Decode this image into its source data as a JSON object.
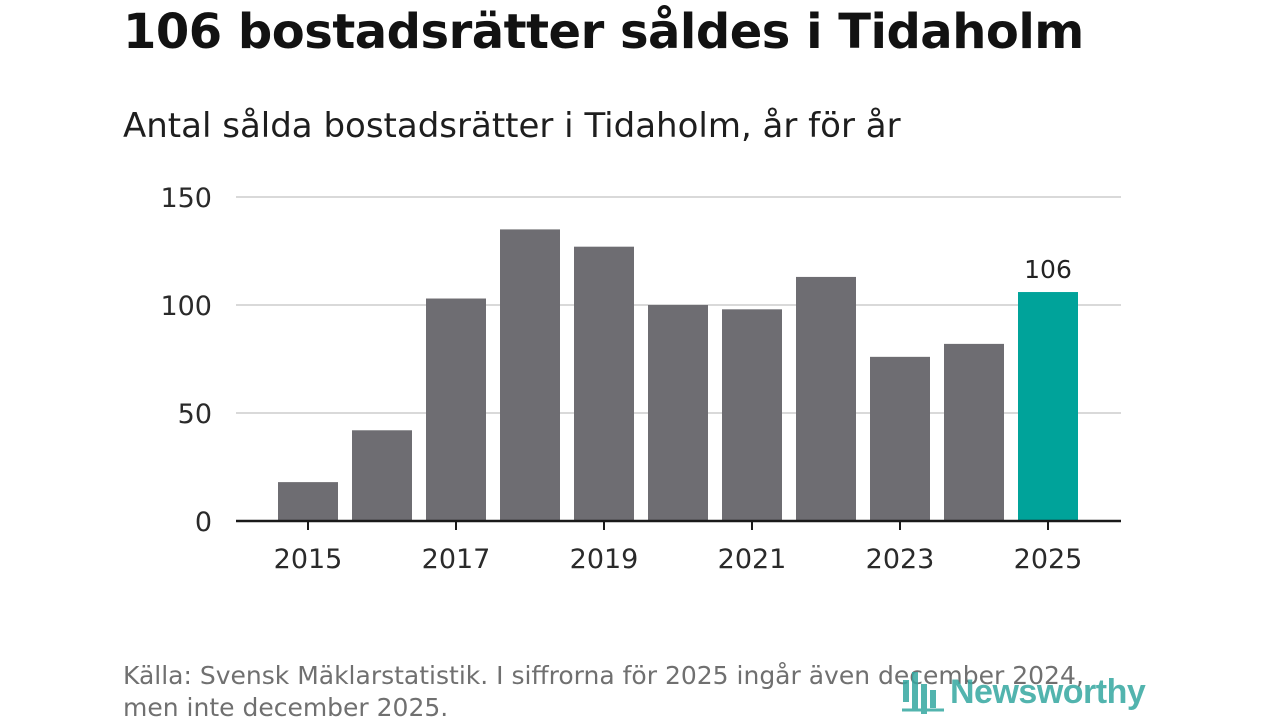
{
  "title": "106 bostadsrätter såldes i Tidaholm",
  "subtitle": "Antal sålda bostadsrätter i Tidaholm, år för år",
  "footer": {
    "source": "Källa: Svensk Mäklarstatistik. I siffrorna för 2025 ingår även december 2024, men inte december 2025."
  },
  "brand": {
    "name": "Newsworthy",
    "color": "#35a7a0"
  },
  "colors": {
    "bar": "#6e6d72",
    "highlight": "#00a39a",
    "grid": "#d9d9d9",
    "axis": "#1a1a1a",
    "tick_text": "#2a2a2a"
  },
  "chart_data": {
    "type": "bar",
    "title": "Antal sålda bostadsrätter i Tidaholm, år för år",
    "xlabel": "",
    "ylabel": "",
    "categories": [
      "2015",
      "2016",
      "2017",
      "2018",
      "2019",
      "2020",
      "2021",
      "2022",
      "2023",
      "2024",
      "2025"
    ],
    "values": [
      18,
      42,
      103,
      135,
      127,
      100,
      98,
      113,
      76,
      82,
      106
    ],
    "highlight_index": 10,
    "data_labels": [
      {
        "category": "2025",
        "text": "106"
      }
    ],
    "ylim": [
      0,
      150
    ],
    "yticks": [
      0,
      50,
      100,
      150
    ],
    "xtick_labels": [
      "2015",
      "2017",
      "2019",
      "2021",
      "2023",
      "2025"
    ],
    "grid": true,
    "legend": "none"
  }
}
